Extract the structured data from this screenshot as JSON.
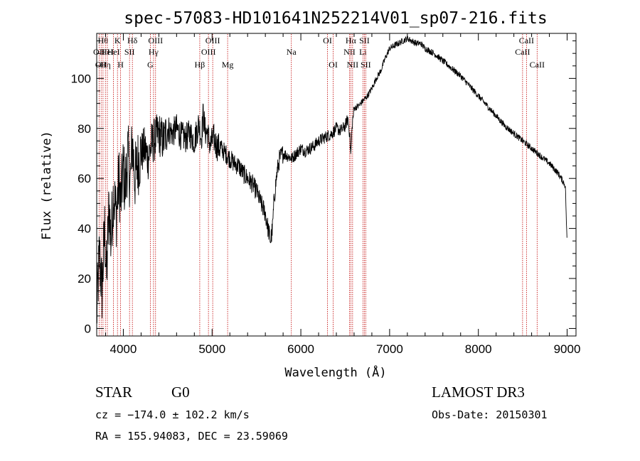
{
  "colors": {
    "frame": "#000000",
    "spectrum": "#000000",
    "line_marker": "#c00000",
    "background": "#ffffff"
  },
  "chart_data": {
    "type": "line",
    "title": "spec-57083-HD101641N252214V01_sp07-216.fits",
    "xlabel": "Wavelength (Å)",
    "ylabel": "Flux (relative)",
    "xlim": [
      3700,
      9100
    ],
    "ylim": [
      -3,
      118
    ],
    "xticks": [
      4000,
      5000,
      6000,
      7000,
      8000,
      9000
    ],
    "yticks": [
      0,
      20,
      40,
      60,
      80,
      100
    ],
    "series": [
      {
        "name": "spectrum",
        "x": [
          3700,
          3730,
          3760,
          3790,
          3810,
          3840,
          3860,
          3890,
          3920,
          3950,
          3970,
          4000,
          4020,
          4050,
          4080,
          4100,
          4130,
          4160,
          4200,
          4240,
          4280,
          4320,
          4360,
          4400,
          4450,
          4500,
          4550,
          4600,
          4650,
          4700,
          4750,
          4800,
          4850,
          4880,
          4900,
          4920,
          4950,
          4980,
          5000,
          5020,
          5050,
          5100,
          5150,
          5200,
          5250,
          5300,
          5350,
          5400,
          5450,
          5500,
          5550,
          5600,
          5630,
          5660,
          5680,
          5700,
          5730,
          5760,
          5800,
          5850,
          5900,
          5950,
          6000,
          6050,
          6100,
          6150,
          6200,
          6250,
          6300,
          6350,
          6400,
          6450,
          6500,
          6530,
          6550,
          6563,
          6580,
          6600,
          6650,
          6700,
          6750,
          6800,
          6850,
          6900,
          6950,
          7000,
          7050,
          7100,
          7150,
          7200,
          7250,
          7300,
          7350,
          7400,
          7500,
          7600,
          7700,
          7800,
          7900,
          8000,
          8100,
          8200,
          8300,
          8400,
          8500,
          8600,
          8700,
          8800,
          8900,
          8950,
          8980,
          9000
        ],
        "y": [
          5,
          30,
          15,
          40,
          20,
          50,
          35,
          55,
          45,
          60,
          50,
          65,
          55,
          70,
          58,
          75,
          60,
          66,
          70,
          72,
          68,
          74,
          76,
          78,
          75,
          80,
          78,
          80,
          77,
          76,
          78,
          75,
          82,
          76,
          86,
          79,
          78,
          73,
          75,
          76,
          73,
          72,
          70,
          68,
          66,
          65,
          62,
          60,
          58,
          55,
          50,
          46,
          40,
          35,
          40,
          52,
          62,
          68,
          70,
          69,
          68,
          70,
          72,
          71,
          72,
          73,
          75,
          76,
          77,
          78,
          80,
          79,
          81,
          84,
          78,
          69,
          82,
          88,
          89,
          91,
          93,
          96,
          100,
          103,
          108,
          112,
          113,
          114,
          115,
          116,
          115,
          114,
          114,
          112,
          110,
          107,
          104,
          101,
          97,
          93,
          89,
          85,
          81,
          78,
          75,
          72,
          69,
          66,
          62,
          59,
          57,
          33
        ]
      }
    ],
    "line_markers": [
      {
        "wavelength": 3727,
        "label": "OII",
        "row": 2
      },
      {
        "wavelength": 3750,
        "label": "OII",
        "row": 3
      },
      {
        "wavelength": 3771,
        "label": "Hθ",
        "row": 1
      },
      {
        "wavelength": 3798,
        "label": "Hη",
        "row": 3
      },
      {
        "wavelength": 3820,
        "label": "HeI",
        "row": 2
      },
      {
        "wavelength": 3889,
        "label": "HeI",
        "row": 2
      },
      {
        "wavelength": 3934,
        "label": "K",
        "row": 1
      },
      {
        "wavelength": 3969,
        "label": "H",
        "row": 3
      },
      {
        "wavelength": 4070,
        "label": "SII",
        "row": 2
      },
      {
        "wavelength": 4102,
        "label": "Hδ",
        "row": 1
      },
      {
        "wavelength": 4304,
        "label": "G",
        "row": 3
      },
      {
        "wavelength": 4340,
        "label": "Hγ",
        "row": 2
      },
      {
        "wavelength": 4363,
        "label": "OIII",
        "row": 1
      },
      {
        "wavelength": 4861,
        "label": "Hβ",
        "row": 3
      },
      {
        "wavelength": 4959,
        "label": "OIII",
        "row": 2
      },
      {
        "wavelength": 5007,
        "label": "OIII",
        "row": 1
      },
      {
        "wavelength": 5175,
        "label": "Mg",
        "row": 3
      },
      {
        "wavelength": 5893,
        "label": "Na",
        "row": 2
      },
      {
        "wavelength": 6300,
        "label": "OI",
        "row": 1
      },
      {
        "wavelength": 6364,
        "label": "OI",
        "row": 3
      },
      {
        "wavelength": 6548,
        "label": "NII",
        "row": 2
      },
      {
        "wavelength": 6563,
        "label": "Hα",
        "row": 1
      },
      {
        "wavelength": 6583,
        "label": "NII",
        "row": 3
      },
      {
        "wavelength": 6700,
        "label": "Li",
        "row": 2
      },
      {
        "wavelength": 6716,
        "label": "SII",
        "row": 1
      },
      {
        "wavelength": 6731,
        "label": "SII",
        "row": 3
      },
      {
        "wavelength": 8498,
        "label": "CaII",
        "row": 2
      },
      {
        "wavelength": 8542,
        "label": "CaII",
        "row": 1
      },
      {
        "wavelength": 8662,
        "label": "CaII",
        "row": 3
      }
    ]
  },
  "info": {
    "class": "STAR",
    "subclass": "G0",
    "survey": "LAMOST DR3",
    "cz": "cz = −174.0 ± 102.2 km/s",
    "obs_date": "Obs-Date: 20150301",
    "coords": "RA = 155.94083, DEC =  23.59069"
  }
}
